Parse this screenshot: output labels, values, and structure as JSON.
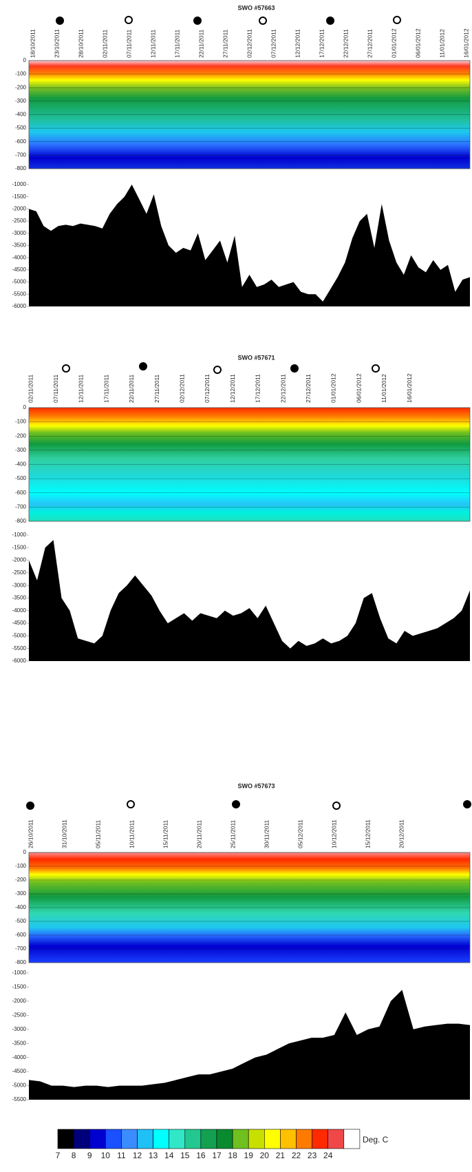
{
  "chart_data": [
    {
      "type": "dive-profile",
      "title": "SWO #57663",
      "categories": [
        "18/10/2011",
        "23/10/2011",
        "28/10/2011",
        "02/11/2011",
        "07/11/2011",
        "12/11/2011",
        "17/11/2011",
        "22/11/2011",
        "27/11/2011",
        "02/12/2011",
        "07/12/2011",
        "12/12/2011",
        "17/12/2011",
        "22/12/2011",
        "27/12/2011",
        "01/01/2012",
        "06/01/2012",
        "11/01/2012",
        "16/01/2012"
      ],
      "ylim": [
        -800,
        0
      ],
      "yticks": [
        0,
        -100,
        -200,
        -300,
        -400,
        -500,
        -600,
        -700,
        -800
      ],
      "bathymetry": {
        "color": "#000000",
        "ylim": [
          -6000,
          -1000
        ],
        "yticks": [
          -1000,
          -1500,
          -2000,
          -2500,
          -3000,
          -3500,
          -4000,
          -4500,
          -5000,
          -5500,
          -6000
        ],
        "values": [
          -2000,
          -2100,
          -2700,
          -2900,
          -2700,
          -2650,
          -2700,
          -2600,
          -2650,
          -2700,
          -2800,
          -2200,
          -1800,
          -1500,
          -1000,
          -1600,
          -2200,
          -1400,
          -2700,
          -3500,
          -3800,
          -3600,
          -3700,
          -3000,
          -4100,
          -3700,
          -3300,
          -4200,
          -3100,
          -5200,
          -4700,
          -5200,
          -5100,
          -4900,
          -5200,
          -5100,
          -5000,
          -5400,
          -5500,
          -5500,
          -5800,
          -5300,
          -4800,
          -4200,
          -3200,
          -2500,
          -2200,
          -3600,
          -1800,
          -3300,
          -4200,
          -4700,
          -3900,
          -4400,
          -4600,
          -4100,
          -4500,
          -4300,
          -5400,
          -4900,
          -4800
        ]
      }
    },
    {
      "type": "dive-profile",
      "title": "SWO #57671",
      "categories": [
        "02/11/2011",
        "07/11/2011",
        "12/11/2011",
        "17/11/2011",
        "22/11/2011",
        "27/11/2011",
        "02/12/2011",
        "07/12/2011",
        "12/12/2011",
        "17/12/2011",
        "22/12/2011",
        "27/12/2011",
        "01/01/2012",
        "06/01/2012",
        "11/01/2012",
        "16/01/2012"
      ],
      "ylim": [
        -800,
        0
      ],
      "yticks": [
        0,
        -100,
        -200,
        -300,
        -400,
        -500,
        -600,
        -700,
        -800
      ],
      "bathymetry": {
        "color": "#000000",
        "ylim": [
          -6000,
          -1000
        ],
        "yticks": [
          -1000,
          -1500,
          -2000,
          -2500,
          -3000,
          -3500,
          -4000,
          -4500,
          -5000,
          -5500,
          -6000
        ],
        "values": [
          -2000,
          -2800,
          -1500,
          -1200,
          -3500,
          -4000,
          -5100,
          -5200,
          -5300,
          -5000,
          -4000,
          -3300,
          -3000,
          -2600,
          -3000,
          -3400,
          -4000,
          -4500,
          -4300,
          -4100,
          -4400,
          -4100,
          -4200,
          -4300,
          -4000,
          -4200,
          -4100,
          -3900,
          -4300,
          -3800,
          -4500,
          -5200,
          -5500,
          -5200,
          -5400,
          -5300,
          -5100,
          -5300,
          -5200,
          -5000,
          -4500,
          -3500,
          -3300,
          -4300,
          -5100,
          -5300,
          -4800,
          -5000,
          -4900,
          -4800,
          -4700,
          -4500,
          -4300,
          -4000,
          -3200
        ]
      }
    },
    {
      "type": "dive-profile",
      "title": "SWO #57673",
      "categories": [
        "26/10/2011",
        "31/10/2011",
        "05/11/2011",
        "10/11/2011",
        "15/11/2011",
        "20/11/2011",
        "25/11/2011",
        "30/11/2011",
        "05/12/2011",
        "10/12/2011",
        "15/12/2011",
        "20/12/2011"
      ],
      "ylim": [
        -800,
        0
      ],
      "yticks": [
        0,
        -100,
        -200,
        -300,
        -400,
        -500,
        -600,
        -700,
        -800
      ],
      "bathymetry": {
        "color": "#000000",
        "ylim": [
          -5500,
          -1000
        ],
        "yticks": [
          -1000,
          -1500,
          -2000,
          -2500,
          -3000,
          -3500,
          -4000,
          -4500,
          -5000,
          -5500
        ],
        "values": [
          -4800,
          -4850,
          -5000,
          -5000,
          -5050,
          -5000,
          -5000,
          -5050,
          -5000,
          -5000,
          -5000,
          -4950,
          -4900,
          -4800,
          -4700,
          -4600,
          -4600,
          -4500,
          -4400,
          -4200,
          -4000,
          -3900,
          -3700,
          -3500,
          -3400,
          -3300,
          -3300,
          -3200,
          -2400,
          -3200,
          -3000,
          -2900,
          -2000,
          -1600,
          -3000,
          -2900,
          -2850,
          -2800,
          -2800,
          -2850
        ]
      }
    },
    {
      "type": "colorbar",
      "label": "Deg. C",
      "ticks": [
        7,
        8,
        9,
        10,
        11,
        12,
        13,
        14,
        15,
        16,
        17,
        18,
        19,
        20,
        21,
        22,
        23,
        24
      ],
      "colors": [
        "#000000",
        "#00007a",
        "#0000d0",
        "#1a50ff",
        "#3a8cff",
        "#1fc0f5",
        "#00ffff",
        "#30e8c8",
        "#22c890",
        "#13a050",
        "#0a8a2e",
        "#70c020",
        "#c8e000",
        "#ffff00",
        "#ffc000",
        "#ff7a00",
        "#ff2a00",
        "#f04848"
      ]
    }
  ]
}
